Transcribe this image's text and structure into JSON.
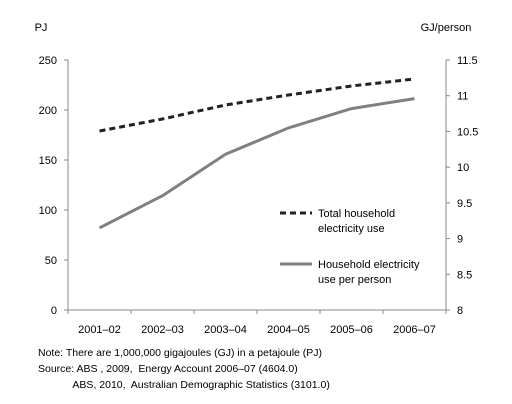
{
  "chart_data": {
    "type": "line",
    "categories": [
      "2001–02",
      "2002–03",
      "2003–04",
      "2004–05",
      "2005–06",
      "2006–07"
    ],
    "y_left": {
      "label": "PJ",
      "range": [
        0,
        250
      ],
      "ticks": [
        "0",
        "50",
        "100",
        "150",
        "200",
        "250"
      ]
    },
    "y_right": {
      "label": "GJ/person",
      "range": [
        8,
        11.5
      ],
      "ticks": [
        "8",
        "8.5",
        "9",
        "9.5",
        "10",
        "10.5",
        "11",
        "11.5"
      ]
    },
    "series": [
      {
        "name": "Total household electricity use",
        "legend_lines": [
          "Total household",
          "electricity use"
        ],
        "axis": "left",
        "style": "dashed",
        "color": "#222222",
        "values": [
          179,
          191,
          205,
          215,
          224,
          231
        ]
      },
      {
        "name": "Household electricity use per person",
        "legend_lines": [
          "Household electricity",
          "use per person"
        ],
        "axis": "right",
        "style": "solid",
        "color": "#808080",
        "values": [
          9.15,
          9.6,
          10.18,
          10.55,
          10.82,
          10.96
        ]
      }
    ],
    "grid": false,
    "legend_position": "right-center"
  },
  "notes": [
    "Note: There are 1,000,000 gigajoules (GJ) in a petajoule (PJ)",
    "Source: ABS , 2009,  Energy Account 2006–07 (4604.0)",
    "            ABS, 2010,  Australian Demographic Statistics (3101.0)"
  ]
}
